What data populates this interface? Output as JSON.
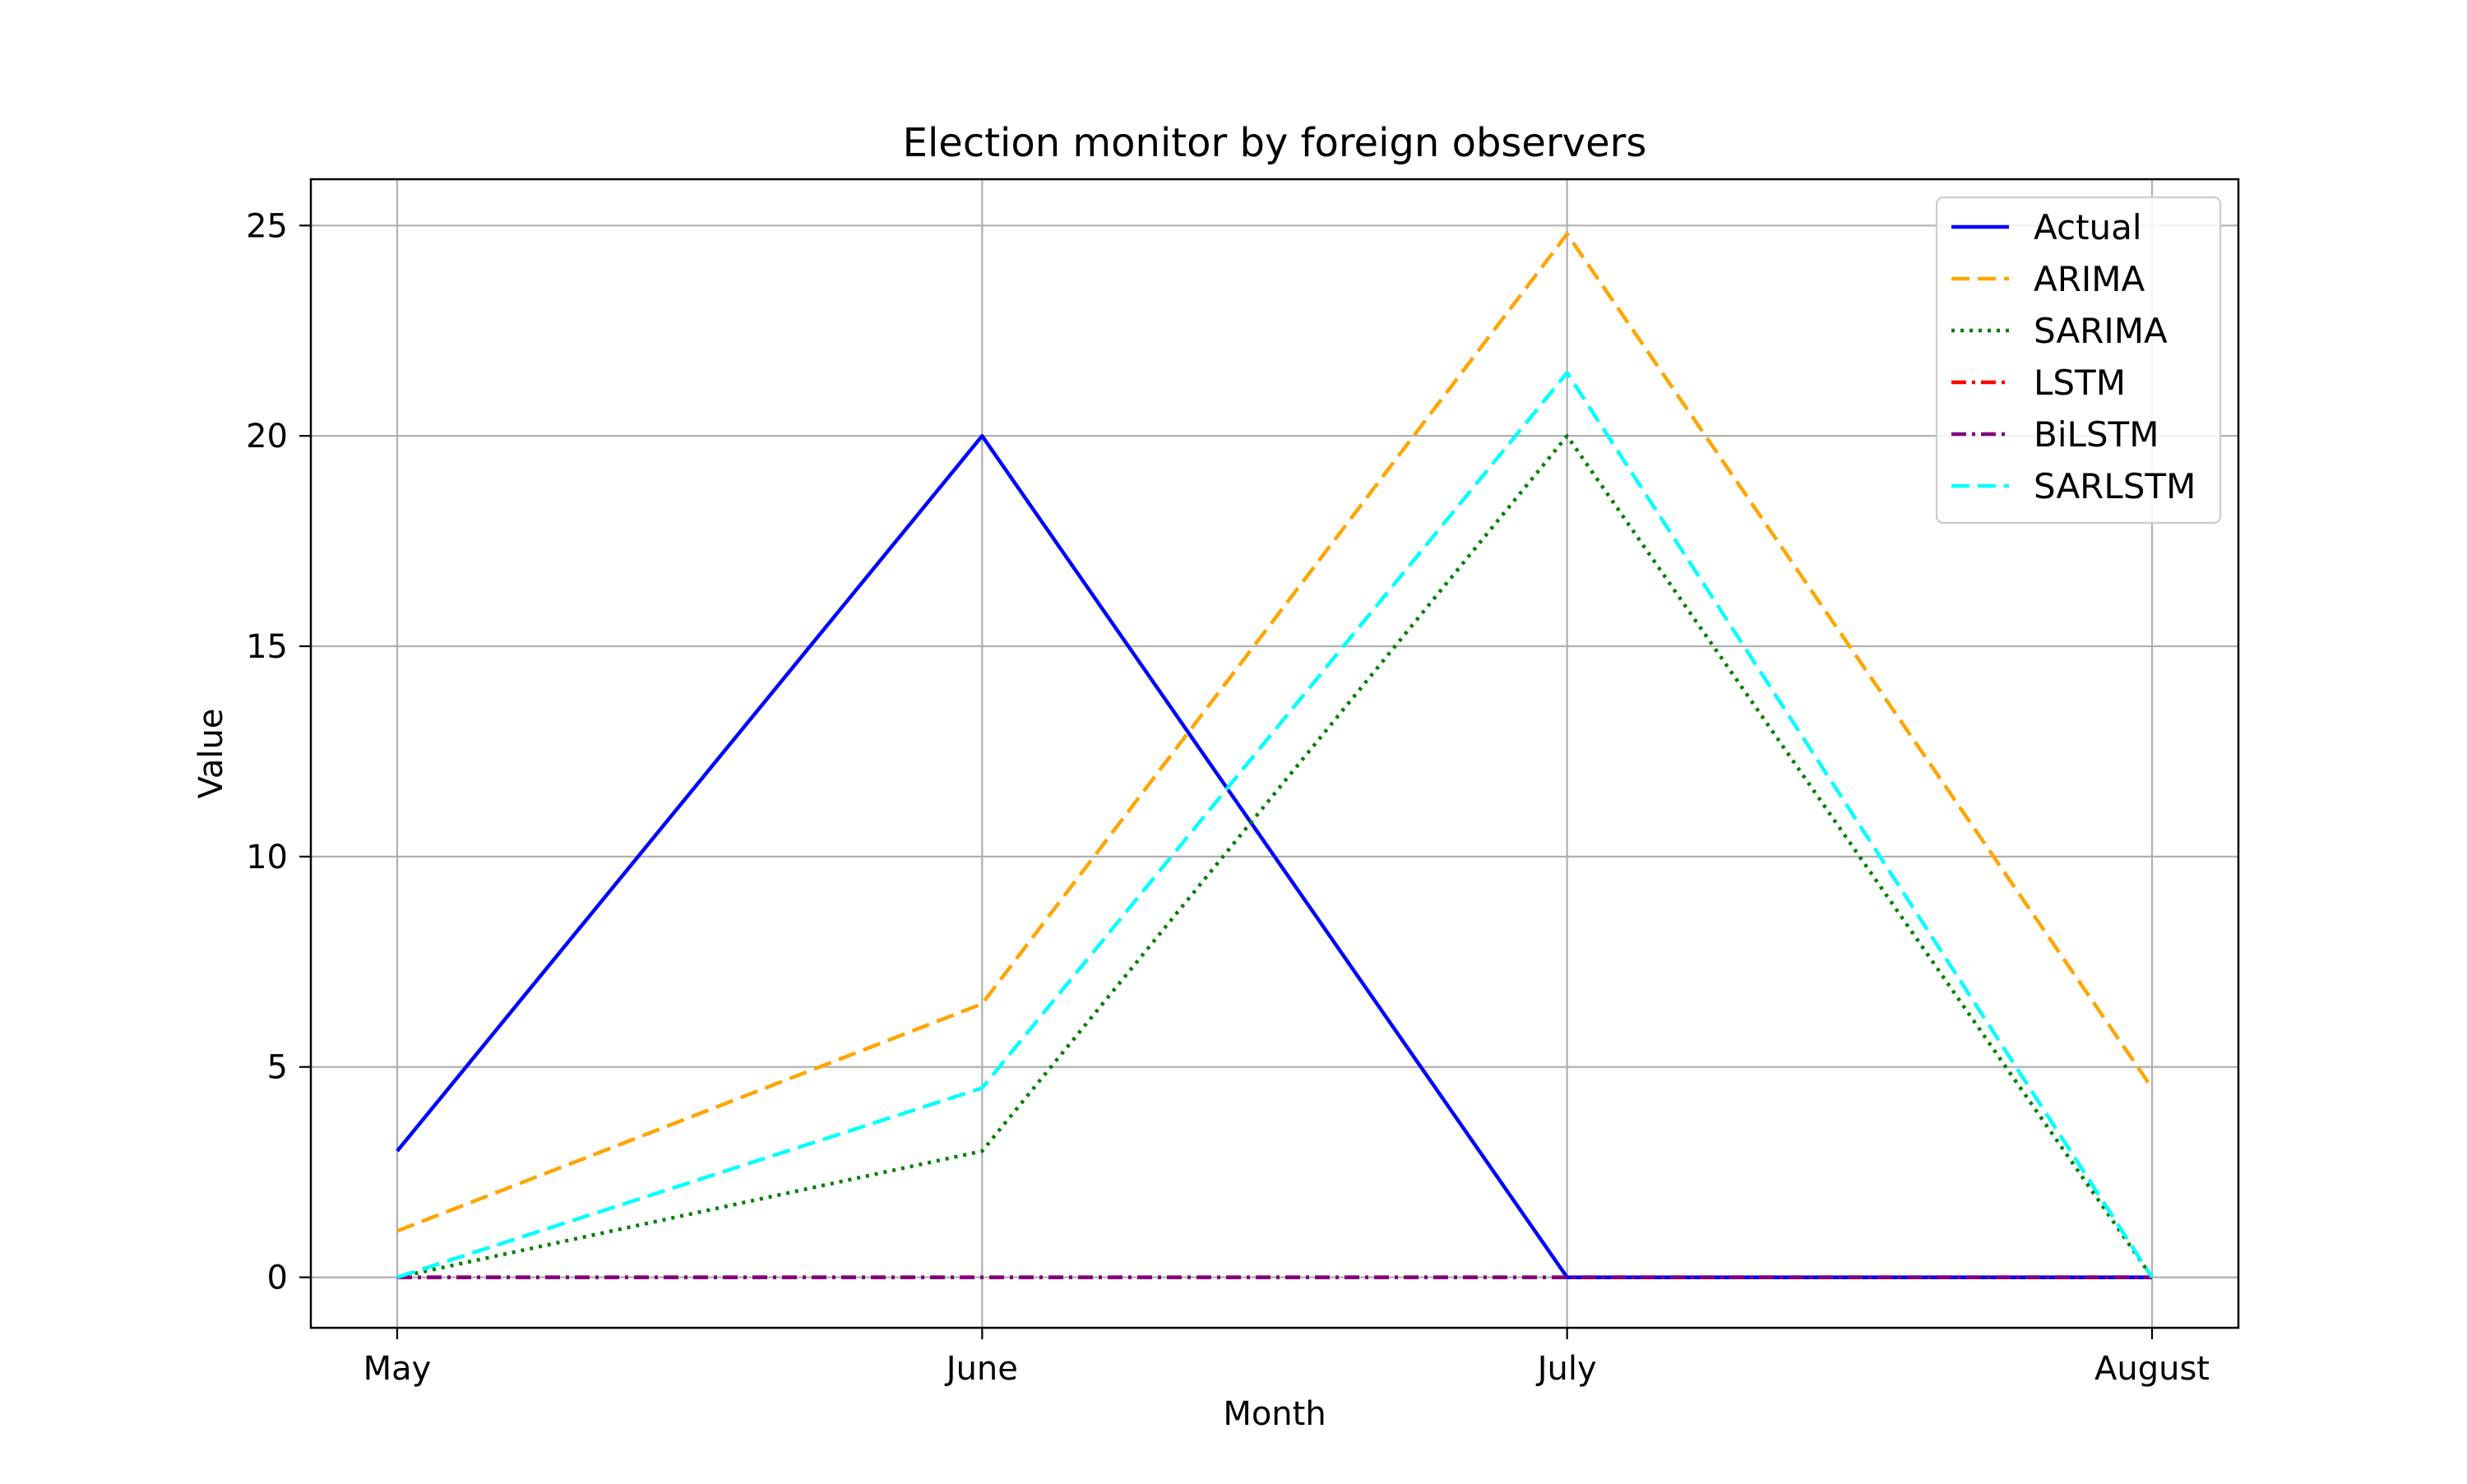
{
  "chart_data": {
    "type": "line",
    "title": "Election monitor by foreign observers",
    "xlabel": "Month",
    "ylabel": "Value",
    "categories": [
      "May",
      "June",
      "July",
      "August"
    ],
    "ylim": [
      -1.2,
      26.1
    ],
    "yticks": [
      0,
      5,
      10,
      15,
      20,
      25
    ],
    "grid": true,
    "legend_position": "top-right",
    "series": [
      {
        "name": "Actual",
        "values": [
          3,
          20,
          0,
          0
        ],
        "color": "#0000ff",
        "dash": "solid"
      },
      {
        "name": "ARIMA",
        "values": [
          1.1,
          6.5,
          24.8,
          4.5
        ],
        "color": "#ffa500",
        "dash": "dashed"
      },
      {
        "name": "SARIMA",
        "values": [
          0,
          3,
          20,
          0
        ],
        "color": "#008000",
        "dash": "dotted"
      },
      {
        "name": "LSTM",
        "values": [
          0,
          0,
          0,
          0
        ],
        "color": "#ff0000",
        "dash": "dashdot"
      },
      {
        "name": "BiLSTM",
        "values": [
          0,
          0,
          0,
          0
        ],
        "color": "#800080",
        "dash": "dashdot"
      },
      {
        "name": "SARLSTM",
        "values": [
          0,
          4.5,
          21.5,
          0
        ],
        "color": "#00ffff",
        "dash": "dashed"
      }
    ]
  }
}
